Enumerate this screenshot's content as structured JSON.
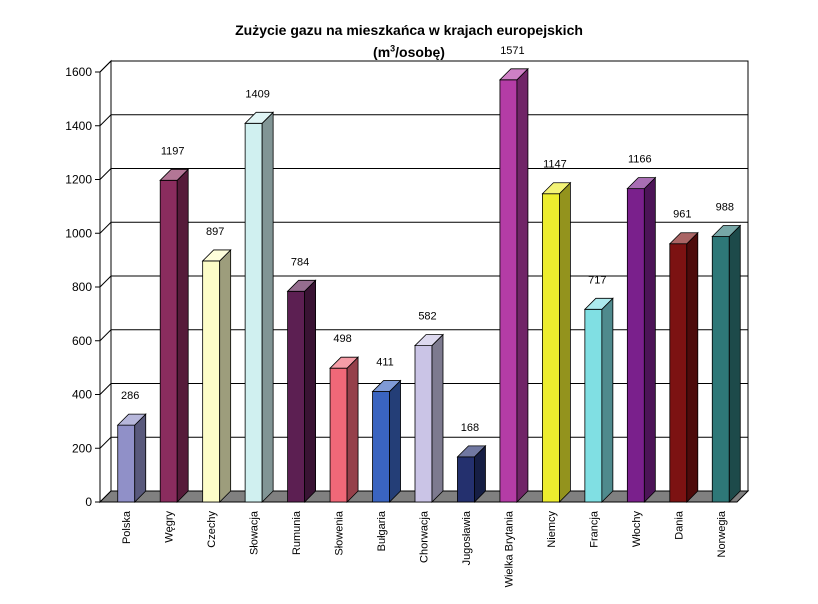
{
  "chart_data": {
    "type": "bar",
    "title": "Zużycie gazu na mieszkańca w krajach europejskich",
    "subtitle": {
      "prefix": "(m",
      "superscript": "3",
      "suffix": "/osobę)"
    },
    "xlabel": "",
    "ylabel": "",
    "ylim": [
      0,
      1600
    ],
    "yticks": [
      0,
      200,
      400,
      600,
      800,
      1000,
      1200,
      1400,
      1600
    ],
    "grid": true,
    "legend": "none",
    "categories": [
      "Polska",
      "Węgry",
      "Czechy",
      "Słowacja",
      "Rumunia",
      "Słowenia",
      "Bułgaria",
      "Chorwacja",
      "Jugosławia",
      "Wielka Brytania",
      "Niemcy",
      "Francja",
      "Włochy",
      "Dania",
      "Norwegia"
    ],
    "values": [
      286,
      1197,
      897,
      1409,
      784,
      498,
      411,
      582,
      168,
      1571,
      1147,
      717,
      1166,
      961,
      988
    ],
    "colors": [
      "#9090c8",
      "#8a2c5e",
      "#fdfdc8",
      "#d0f0f0",
      "#5c1f52",
      "#f06878",
      "#3a64c0",
      "#cac4e6",
      "#24306e",
      "#b43ca6",
      "#eded2e",
      "#80dfe3",
      "#7a208c",
      "#7c1212",
      "#2e7878"
    ]
  }
}
